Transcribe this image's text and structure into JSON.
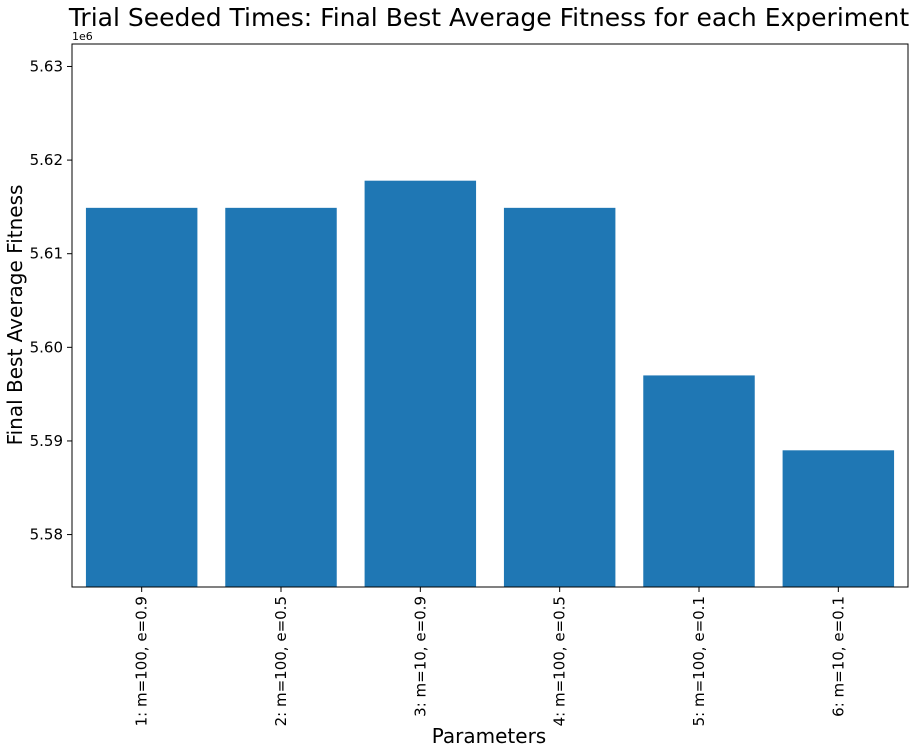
{
  "chart_data": {
    "type": "bar",
    "title": "Trial Seeded Times: Final Best Average Fitness for each Experiment",
    "xlabel": "Parameters",
    "ylabel": "Final Best Average Fitness",
    "y_offset_label": "1e6",
    "y_scale_factor": 1000000,
    "ylim": [
      5.5744,
      5.6324
    ],
    "yticks": [
      5.58,
      5.59,
      5.6,
      5.61,
      5.62,
      5.63
    ],
    "ytick_labels": [
      "5.58",
      "5.59",
      "5.60",
      "5.61",
      "5.62",
      "5.63"
    ],
    "grid": false,
    "categories": [
      "1: m=100, e=0.9",
      "2: m=100, e=0.5",
      "3: m=10, e=0.9",
      "4: m=100, e=0.5",
      "5: m=100, e=0.1",
      "6: m=10, e=0.1"
    ],
    "values": [
      5.6149,
      5.6149,
      5.6178,
      5.6149,
      5.597,
      5.589
    ],
    "colors": {
      "bar": "#1f77b4",
      "axis": "#000000"
    }
  }
}
